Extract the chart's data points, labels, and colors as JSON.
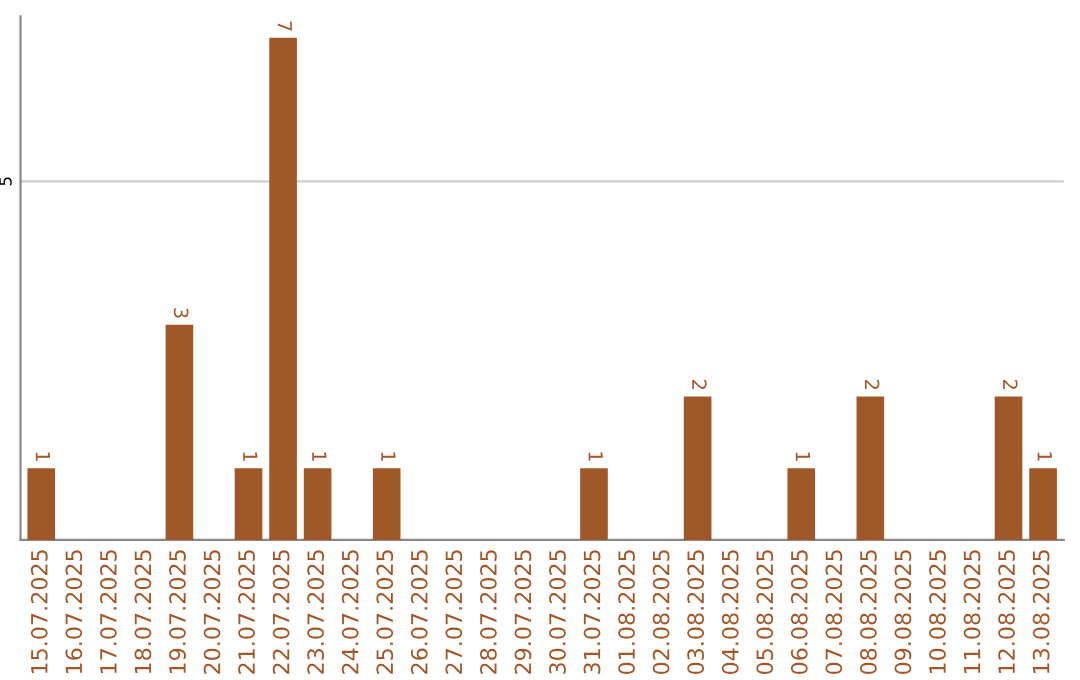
{
  "chart_data": {
    "type": "bar",
    "categories": [
      "15.07.2025",
      "16.07.2025",
      "17.07.2025",
      "18.07.2025",
      "19.07.2025",
      "20.07.2025",
      "21.07.2025",
      "22.07.2025",
      "23.07.2025",
      "24.07.2025",
      "25.07.2025",
      "26.07.2025",
      "27.07.2025",
      "28.07.2025",
      "29.07.2025",
      "30.07.2025",
      "31.07.2025",
      "01.08.2025",
      "02.08.2025",
      "03.08.2025",
      "04.08.2025",
      "05.08.2025",
      "06.08.2025",
      "07.08.2025",
      "08.08.2025",
      "09.08.2025",
      "10.08.2025",
      "11.08.2025",
      "12.08.2025",
      "13.08.2025"
    ],
    "values": [
      1,
      0,
      0,
      0,
      3,
      0,
      1,
      7,
      1,
      0,
      1,
      0,
      0,
      0,
      0,
      0,
      1,
      0,
      0,
      2,
      0,
      0,
      1,
      0,
      2,
      0,
      0,
      0,
      2,
      1
    ],
    "value_labels": [
      "1",
      null,
      null,
      null,
      "3",
      null,
      "1",
      "7",
      "1",
      null,
      "1",
      null,
      null,
      null,
      null,
      null,
      "1",
      null,
      null,
      "2",
      null,
      null,
      "1",
      null,
      "2",
      null,
      null,
      null,
      "2",
      "1"
    ],
    "color": "#a0572a",
    "ylim": [
      0,
      7.3
    ],
    "yticks": [
      5
    ],
    "grid": "y"
  }
}
